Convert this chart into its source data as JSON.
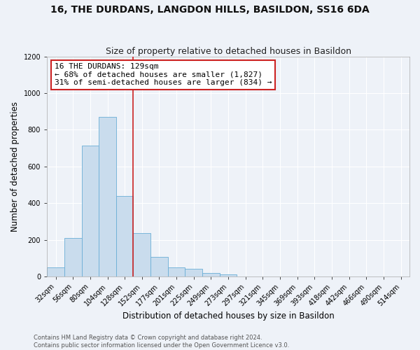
{
  "title": "16, THE DURDANS, LANGDON HILLS, BASILDON, SS16 6DA",
  "subtitle": "Size of property relative to detached houses in Basildon",
  "xlabel": "Distribution of detached houses by size in Basildon",
  "ylabel": "Number of detached properties",
  "bin_labels": [
    "32sqm",
    "56sqm",
    "80sqm",
    "104sqm",
    "128sqm",
    "152sqm",
    "177sqm",
    "201sqm",
    "225sqm",
    "249sqm",
    "273sqm",
    "297sqm",
    "321sqm",
    "345sqm",
    "369sqm",
    "393sqm",
    "418sqm",
    "442sqm",
    "466sqm",
    "490sqm",
    "514sqm"
  ],
  "bar_values": [
    50,
    210,
    715,
    870,
    440,
    235,
    105,
    50,
    40,
    20,
    10,
    0,
    0,
    0,
    0,
    0,
    0,
    0,
    0,
    0,
    0
  ],
  "bar_color": "#c9dced",
  "bar_edgecolor": "#6aaed6",
  "vline_color": "#cc2222",
  "vline_x": 4.5,
  "annotation_text": "16 THE DURDANS: 129sqm\n← 68% of detached houses are smaller (1,827)\n31% of semi-detached houses are larger (834) →",
  "annotation_box_edgecolor": "#cc2222",
  "annotation_box_facecolor": "#ffffff",
  "ylim": [
    0,
    1200
  ],
  "yticks": [
    0,
    200,
    400,
    600,
    800,
    1000,
    1200
  ],
  "footer_line1": "Contains HM Land Registry data © Crown copyright and database right 2024.",
  "footer_line2": "Contains public sector information licensed under the Open Government Licence v3.0.",
  "background_color": "#eef2f8",
  "grid_color": "#ffffff",
  "title_fontsize": 10,
  "subtitle_fontsize": 9,
  "axis_label_fontsize": 8.5,
  "tick_fontsize": 7,
  "annotation_fontsize": 8,
  "footer_fontsize": 6
}
